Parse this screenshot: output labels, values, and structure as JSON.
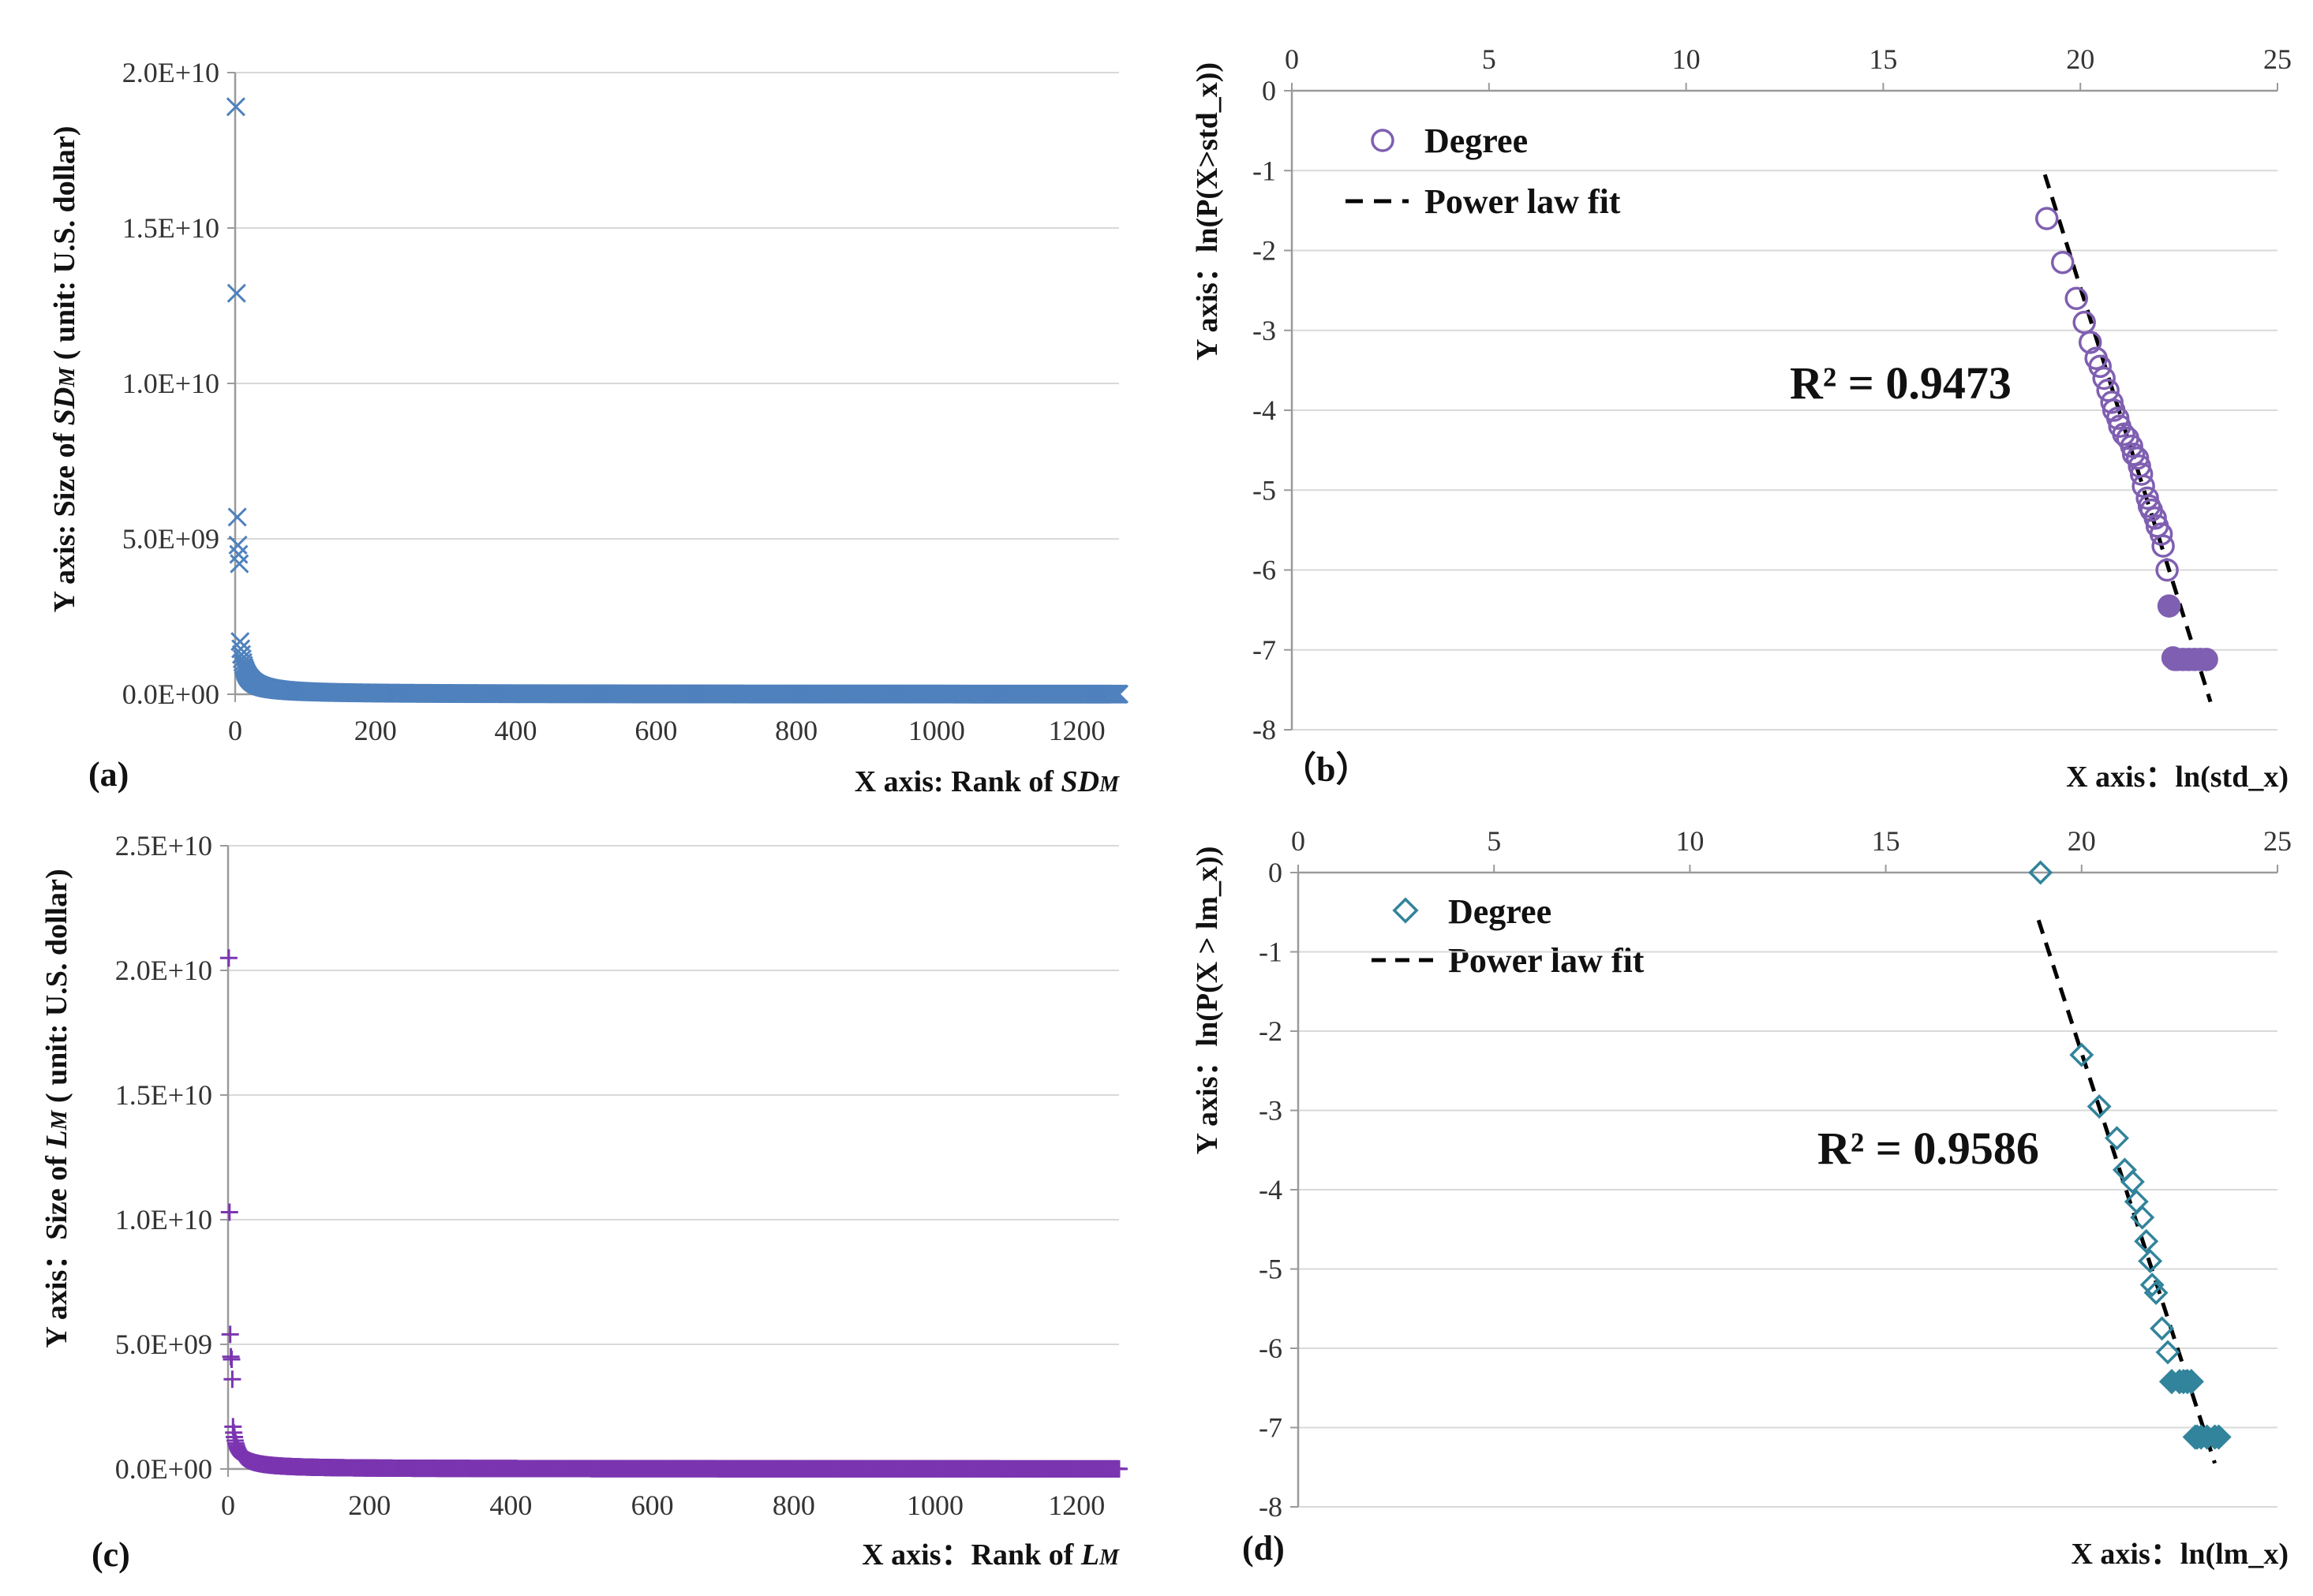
{
  "colors": {
    "panel_a": "#4f81bd",
    "panel_b": "#7f5fb1",
    "panel_c": "#7b35b0",
    "panel_d": "#31849b",
    "grid": "#d9d9d9",
    "fit": "#000000"
  },
  "chart_data": [
    {
      "id": "a",
      "type": "scatter",
      "panel_label": "(a)",
      "marker": "x",
      "xlabel_prefix": "X axis: Rank of ",
      "xlabel_italic": "SD",
      "xlabel_sub": "M",
      "ylabel_prefix": "Y axis: Size of ",
      "ylabel_italic": "SD",
      "ylabel_sub": "M",
      "ylabel_suffix": " ( unit: U.S. dollar)",
      "xlim": [
        0,
        1260
      ],
      "ylim": [
        0,
        20000000000
      ],
      "xticks": [
        0,
        200,
        400,
        600,
        800,
        1000,
        1200
      ],
      "xtick_labels": [
        "0",
        "200",
        "400",
        "600",
        "800",
        "1000",
        "1200"
      ],
      "yticks": [
        0,
        5000000000,
        10000000000,
        15000000000,
        20000000000
      ],
      "ytick_labels": [
        "0.0E+00",
        "5.0E+09",
        "1.0E+10",
        "1.5E+10",
        "2.0E+10"
      ],
      "grid": true,
      "rank_size": {
        "n": 1260,
        "head": [
          18900000000,
          12900000000,
          5700000000,
          4800000000,
          4500000000,
          4200000000
        ],
        "scale": 15000000000,
        "alpha": 1.12
      }
    },
    {
      "id": "b",
      "type": "scatter",
      "panel_label": "（b）",
      "marker": "circle",
      "xlabel": "X axis：ln(std_x)",
      "ylabel": "Y axis：ln(P(X>std_x))",
      "xlim": [
        0,
        25
      ],
      "ylim": [
        -8,
        0
      ],
      "xticks": [
        0,
        5,
        10,
        15,
        20,
        25
      ],
      "xtick_labels": [
        "0",
        "5",
        "10",
        "15",
        "20",
        "25"
      ],
      "yticks": [
        0,
        -1,
        -2,
        -3,
        -4,
        -5,
        -6,
        -7,
        -8
      ],
      "ytick_labels": [
        "0",
        "-1",
        "-2",
        "-3",
        "-4",
        "-5",
        "-6",
        "-7",
        "-8"
      ],
      "grid": true,
      "x_axis_position": "top",
      "legend": [
        "Degree",
        "Power law fit"
      ],
      "r2": "R² = 0.9473",
      "fit_line": {
        "x": [
          19.1,
          23.3
        ],
        "y": [
          -1.05,
          -7.65
        ]
      },
      "series": {
        "name": "Degree",
        "x": [
          19.15,
          19.55,
          19.9,
          20.1,
          20.25,
          20.4,
          20.5,
          20.6,
          20.7,
          20.8,
          20.85,
          20.95,
          21.0,
          21.1,
          21.2,
          21.3,
          21.35,
          21.45,
          21.5,
          21.55,
          21.6,
          21.7,
          21.75,
          21.8,
          21.9,
          21.95,
          22.05,
          22.1,
          22.2,
          22.25,
          22.35,
          22.45,
          22.4,
          22.6,
          22.75,
          22.9,
          23.05,
          23.2
        ],
        "y": [
          -1.6,
          -2.15,
          -2.6,
          -2.9,
          -3.15,
          -3.35,
          -3.45,
          -3.6,
          -3.75,
          -3.9,
          -4.0,
          -4.1,
          -4.2,
          -4.3,
          -4.35,
          -4.45,
          -4.55,
          -4.6,
          -4.7,
          -4.8,
          -4.95,
          -5.1,
          -5.2,
          -5.25,
          -5.35,
          -5.45,
          -5.55,
          -5.7,
          -6.0,
          -6.45,
          -7.1,
          -7.12,
          -7.12,
          -7.12,
          -7.12,
          -7.12,
          -7.12,
          -7.12
        ]
      }
    },
    {
      "id": "c",
      "type": "scatter",
      "panel_label": "(c)",
      "marker": "plus",
      "xlabel_prefix": "X axis：Rank of ",
      "xlabel_italic": "L",
      "xlabel_sub": "M",
      "ylabel_prefix": "Y axis：Size of ",
      "ylabel_italic": "L",
      "ylabel_sub": "M",
      "ylabel_suffix": " ( unit: U.S. dollar)",
      "xlim": [
        0,
        1260
      ],
      "ylim": [
        0,
        25000000000
      ],
      "xticks": [
        0,
        200,
        400,
        600,
        800,
        1000,
        1200
      ],
      "xtick_labels": [
        "0",
        "200",
        "400",
        "600",
        "800",
        "1000",
        "1200"
      ],
      "yticks": [
        0,
        5000000000,
        10000000000,
        15000000000,
        20000000000,
        25000000000
      ],
      "ytick_labels": [
        "0.0E+00",
        "5.0E+09",
        "1.0E+10",
        "1.5E+10",
        "2.0E+10",
        "2.5E+10"
      ],
      "grid": true,
      "rank_size": {
        "n": 1260,
        "head": [
          20500000000,
          10300000000,
          5400000000,
          4500000000,
          4400000000,
          3600000000
        ],
        "scale": 15000000000,
        "alpha": 1.12
      }
    },
    {
      "id": "d",
      "type": "scatter",
      "panel_label": "(d)",
      "marker": "diamond",
      "xlabel": "X axis：ln(lm_x)",
      "ylabel": "Y axis：ln(P(X > lm_x))",
      "xlim": [
        0,
        25
      ],
      "ylim": [
        -8,
        0
      ],
      "xticks": [
        0,
        5,
        10,
        15,
        20,
        25
      ],
      "xtick_labels": [
        "0",
        "5",
        "10",
        "15",
        "20",
        "25"
      ],
      "yticks": [
        0,
        -1,
        -2,
        -3,
        -4,
        -5,
        -6,
        -7,
        -8
      ],
      "ytick_labels": [
        "0",
        "-1",
        "-2",
        "-3",
        "-4",
        "-5",
        "-6",
        "-7",
        "-8"
      ],
      "grid": true,
      "x_axis_position": "top",
      "legend": [
        "Degree",
        "Power law fit"
      ],
      "r2": "R² = 0.9586",
      "fit_line": {
        "x": [
          18.9,
          23.4
        ],
        "y": [
          -0.6,
          -7.45
        ]
      },
      "series": {
        "name": "Degree",
        "x": [
          18.95,
          20.0,
          20.45,
          20.9,
          21.1,
          21.3,
          21.4,
          21.55,
          21.65,
          21.75,
          21.8,
          21.9,
          22.05,
          22.2,
          22.3,
          22.5,
          22.6,
          22.7,
          22.8,
          22.9,
          22.95,
          23.05,
          23.2,
          23.4,
          23.5
        ],
        "y": [
          0,
          -2.3,
          -2.95,
          -3.35,
          -3.75,
          -3.9,
          -4.15,
          -4.35,
          -4.65,
          -4.9,
          -5.2,
          -5.3,
          -5.75,
          -6.05,
          -6.42,
          -6.42,
          -6.42,
          -6.42,
          -6.42,
          -7.12,
          -7.12,
          -7.12,
          -7.12,
          -7.12,
          -7.12
        ]
      }
    }
  ]
}
